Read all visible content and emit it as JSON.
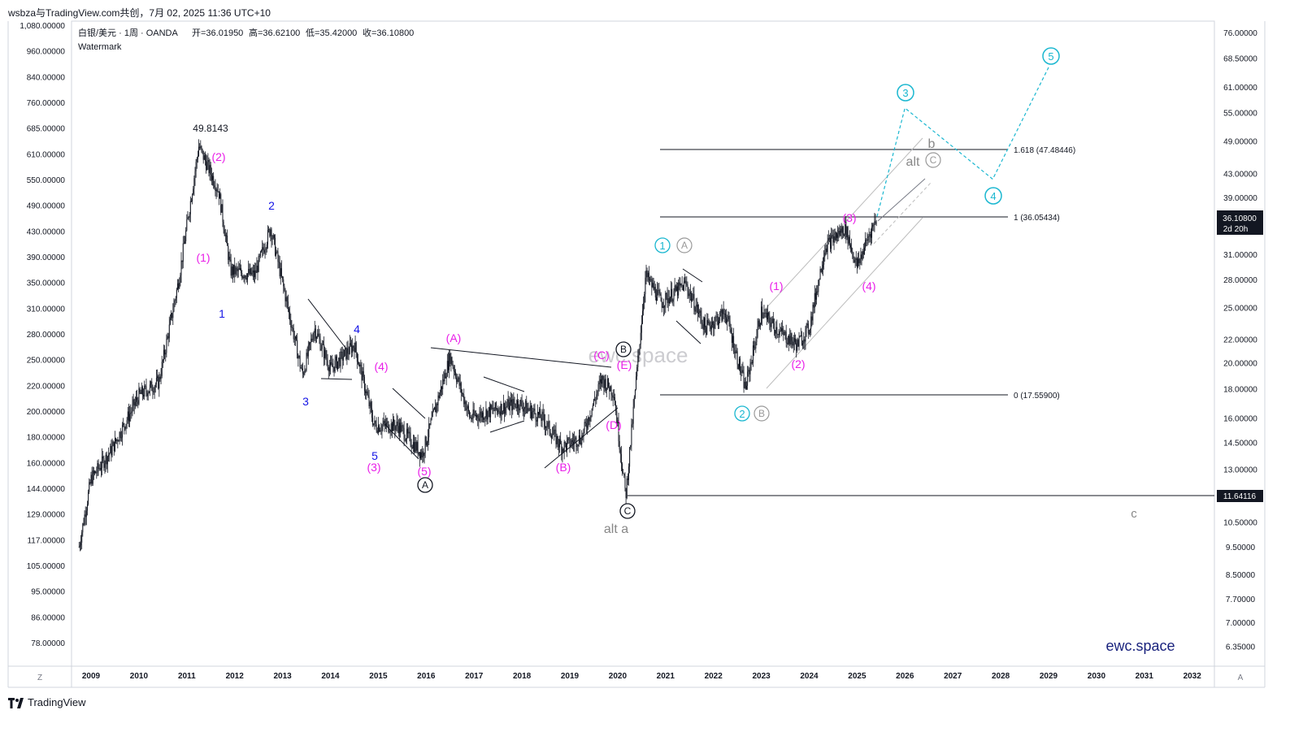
{
  "title_bar": "wsbza与TradingView.com共创，7月 02, 2025 11:36 UTC+10",
  "footer": {
    "logo_text": "TradingView"
  },
  "symbol_info": {
    "name": "白银/美元 · 1周 · OANDA",
    "open": "开=36.01950",
    "high": "高=36.62100",
    "low": "低=35.42000",
    "close": "收=36.10800",
    "watermark_label": "Watermark"
  },
  "colors": {
    "candle": "#131722",
    "magenta": "#e91ee8",
    "blue": "#1515e6",
    "cyan": "#1ab7d0",
    "gray": "#999999",
    "brand": "#1a237e",
    "price_label_bg": "#131722"
  },
  "left_axis": {
    "ticks": [
      "1,080.00000",
      "960.00000",
      "840.00000",
      "760.00000",
      "685.00000",
      "610.00000",
      "550.00000",
      "490.00000",
      "430.00000",
      "390.00000",
      "350.00000",
      "310.00000",
      "280.00000",
      "250.00000",
      "220.00000",
      "200.00000",
      "180.00000",
      "160.00000",
      "144.00000",
      "129.00000",
      "117.00000",
      "105.00000",
      "95.00000",
      "86.00000",
      "78.00000"
    ],
    "bottom_label": "Z"
  },
  "right_axis": {
    "ticks": [
      "76.00000",
      "68.50000",
      "61.00000",
      "55.00000",
      "49.00000",
      "43.00000",
      "39.00000",
      "31.00000",
      "28.00000",
      "25.00000",
      "22.00000",
      "20.00000",
      "18.00000",
      "16.00000",
      "14.50000",
      "13.00000",
      "10.50000",
      "9.50000",
      "8.50000",
      "7.70000",
      "7.00000",
      "6.35000"
    ],
    "current_price": "36.10800",
    "countdown": "2d 20h",
    "low_line_price": "11.64116",
    "bottom_label": "A"
  },
  "x_axis": {
    "years": [
      "2009",
      "2010",
      "2011",
      "2012",
      "2013",
      "2014",
      "2015",
      "2016",
      "2017",
      "2018",
      "2019",
      "2020",
      "2021",
      "2022",
      "2023",
      "2024",
      "2025",
      "2026",
      "2027",
      "2028",
      "2029",
      "2030",
      "2031",
      "2032"
    ]
  },
  "fib_levels": [
    {
      "label": "1.618 (47.48446)",
      "value": 47.48446
    },
    {
      "label": "1 (36.05434)",
      "value": 36.05434
    },
    {
      "label": "0 (17.55900)",
      "value": 17.559
    }
  ],
  "annotations": {
    "peak_value": "49.8143",
    "magenta": [
      "(2)",
      "(1)",
      "(4)",
      "(3)",
      "(5)",
      "(A)",
      "(C)",
      "(E)",
      "(D)",
      "(B)",
      "(1)",
      "(2)",
      "(3)",
      "(4)"
    ],
    "blue": [
      "2",
      "1",
      "4",
      "3",
      "5"
    ],
    "circled_black": [
      "A",
      "B",
      "C"
    ],
    "circled_cyan": [
      "1",
      "2",
      "3",
      "4",
      "5"
    ],
    "circled_gray": [
      "A",
      "B",
      "C"
    ],
    "gray_text": [
      "alt a",
      "alt",
      "b",
      "c"
    ],
    "watermark_center": "ewc.space",
    "brand": "ewc.space"
  },
  "chart_data": {
    "type": "candlestick",
    "series": [
      {
        "name": "白银/美元",
        "x": [
          "2008-10",
          "2009-01",
          "2009-06",
          "2010-01",
          "2010-06",
          "2010-11",
          "2011-04",
          "2011-09",
          "2011-12",
          "2012-06",
          "2012-10",
          "2013-06",
          "2013-09",
          "2014-01",
          "2014-07",
          "2014-12",
          "2015-06",
          "2015-12",
          "2016-07",
          "2016-12",
          "2017-06",
          "2017-12",
          "2018-06",
          "2018-11",
          "2019-04",
          "2019-09",
          "2019-12",
          "2020-03",
          "2020-08",
          "2020-12",
          "2021-06",
          "2021-11",
          "2022-04",
          "2022-09",
          "2023-01",
          "2023-06",
          "2023-10",
          "2024-01",
          "2024-05",
          "2024-10",
          "2025-01",
          "2025-04",
          "2025-06"
        ],
        "values": [
          9.5,
          12.5,
          14.0,
          17.5,
          18.5,
          28.0,
          48.0,
          40.0,
          29.0,
          28.5,
          34.5,
          19.0,
          23.0,
          19.5,
          21.5,
          15.5,
          15.5,
          13.8,
          20.5,
          16.0,
          16.5,
          17.0,
          16.0,
          14.2,
          14.8,
          18.7,
          17.8,
          11.64,
          28.5,
          25.5,
          27.5,
          23.0,
          24.5,
          18.0,
          24.5,
          22.5,
          21.5,
          23.0,
          32.0,
          34.5,
          29.5,
          33.5,
          36.1
        ]
      }
    ],
    "last_value": 36.108,
    "ohlc_last": {
      "open": 36.0195,
      "high": 36.621,
      "low": 35.42,
      "close": 36.108
    },
    "scale": "log",
    "yrange": [
      6.0,
      80.0
    ],
    "grid": false,
    "legend": "top-left",
    "projection": {
      "name": "wave path",
      "x": [
        "2025-06",
        "2026-01",
        "2027-11",
        "2029-01"
      ],
      "values": [
        36.1,
        56.0,
        42.0,
        66.0
      ]
    }
  }
}
